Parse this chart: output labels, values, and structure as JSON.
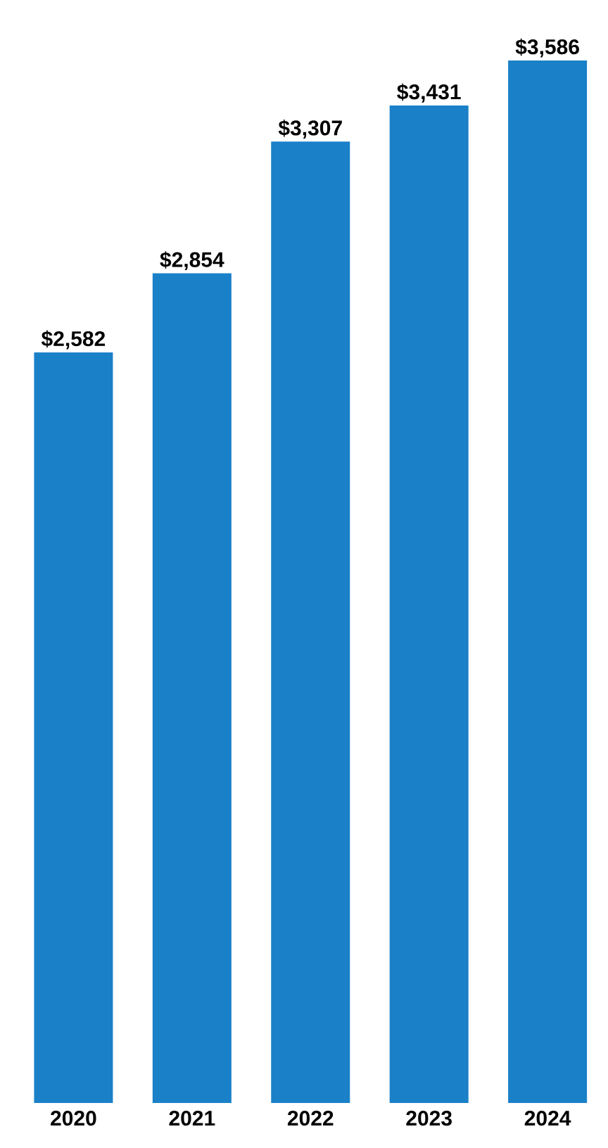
{
  "chart_data": {
    "type": "bar",
    "categories": [
      "2020",
      "2021",
      "2022",
      "2023",
      "2024"
    ],
    "values": [
      2582,
      2854,
      3307,
      3431,
      3586
    ],
    "value_labels": [
      "$2,582",
      "$2,854",
      "$3,307",
      "$3,431",
      "$3,586"
    ],
    "color": "#1a80c8"
  }
}
